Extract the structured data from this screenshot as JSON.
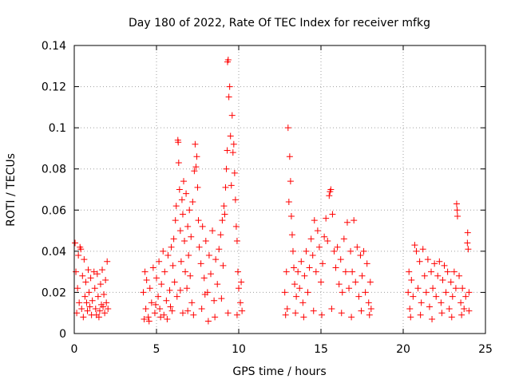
{
  "chart_data": {
    "type": "scatter",
    "title": "Day 180 of 2022, Rate Of TEC Index for receiver mfkg",
    "xlabel": "GPS time / hours",
    "ylabel": "ROTI / TECUs",
    "xlim": [
      0,
      25
    ],
    "ylim": [
      0,
      0.14
    ],
    "xticks": [
      0,
      5,
      10,
      15,
      20,
      25
    ],
    "xtick_labels": [
      "0",
      "5",
      "10",
      "15",
      "20",
      "25"
    ],
    "yticks": [
      0,
      0.02,
      0.04,
      0.06,
      0.08,
      0.1,
      0.12,
      0.14
    ],
    "ytick_labels": [
      "0",
      "0.02",
      "0.04",
      "0.06",
      "0.08",
      "0.1",
      "0.12",
      "0.14"
    ],
    "grid": true,
    "marker": "+",
    "color": "#ff0000",
    "series": [
      {
        "points": [
          [
            0.05,
            0.044
          ],
          [
            0.1,
            0.03
          ],
          [
            0.2,
            0.022
          ],
          [
            0.25,
            0.038
          ],
          [
            0.3,
            0.015
          ],
          [
            0.35,
            0.042
          ],
          [
            0.4,
            0.041
          ],
          [
            0.45,
            0.012
          ],
          [
            0.5,
            0.028
          ],
          [
            0.55,
            0.008
          ],
          [
            0.6,
            0.036
          ],
          [
            0.65,
            0.018
          ],
          [
            0.7,
            0.025
          ],
          [
            0.8,
            0.011
          ],
          [
            0.85,
            0.031
          ],
          [
            0.9,
            0.02
          ],
          [
            1.0,
            0.027
          ],
          [
            1.05,
            0.009
          ],
          [
            1.1,
            0.016
          ],
          [
            1.2,
            0.03
          ],
          [
            1.25,
            0.022
          ],
          [
            1.3,
            0.012
          ],
          [
            1.4,
            0.029
          ],
          [
            1.45,
            0.018
          ],
          [
            1.5,
            0.008
          ],
          [
            1.6,
            0.024
          ],
          [
            1.65,
            0.014
          ],
          [
            1.7,
            0.031
          ],
          [
            1.8,
            0.019
          ],
          [
            1.85,
            0.01
          ],
          [
            1.9,
            0.026
          ],
          [
            1.95,
            0.015
          ],
          [
            2.0,
            0.035
          ],
          [
            2.05,
            0.012
          ],
          [
            0.15,
            0.01
          ],
          [
            0.75,
            0.015
          ],
          [
            1.35,
            0.009
          ],
          [
            1.75,
            0.013
          ],
          [
            0.95,
            0.013
          ],
          [
            1.55,
            0.011
          ],
          [
            4.2,
            0.02
          ],
          [
            4.3,
            0.03
          ],
          [
            4.35,
            0.012
          ],
          [
            4.4,
            0.026
          ],
          [
            4.5,
            0.008
          ],
          [
            4.6,
            0.022
          ],
          [
            4.7,
            0.015
          ],
          [
            4.8,
            0.032
          ],
          [
            4.9,
            0.01
          ],
          [
            5.0,
            0.027
          ],
          [
            5.1,
            0.018
          ],
          [
            5.15,
            0.035
          ],
          [
            5.2,
            0.012
          ],
          [
            5.3,
            0.024
          ],
          [
            5.4,
            0.04
          ],
          [
            5.45,
            0.009
          ],
          [
            5.5,
            0.03
          ],
          [
            5.6,
            0.016
          ],
          [
            5.7,
            0.038
          ],
          [
            5.8,
            0.021
          ],
          [
            5.9,
            0.042
          ],
          [
            5.95,
            0.011
          ],
          [
            6.0,
            0.033
          ],
          [
            6.05,
            0.046
          ],
          [
            6.1,
            0.025
          ],
          [
            6.15,
            0.055
          ],
          [
            6.2,
            0.062
          ],
          [
            6.25,
            0.018
          ],
          [
            6.3,
            0.094
          ],
          [
            6.32,
            0.093
          ],
          [
            6.35,
            0.083
          ],
          [
            6.4,
            0.07
          ],
          [
            6.45,
            0.05
          ],
          [
            6.5,
            0.035
          ],
          [
            6.55,
            0.065
          ],
          [
            6.6,
            0.058
          ],
          [
            6.65,
            0.074
          ],
          [
            6.7,
            0.045
          ],
          [
            6.75,
            0.03
          ],
          [
            6.8,
            0.068
          ],
          [
            6.85,
            0.022
          ],
          [
            6.9,
            0.052
          ],
          [
            6.95,
            0.038
          ],
          [
            7.0,
            0.06
          ],
          [
            7.05,
            0.028
          ],
          [
            7.1,
            0.047
          ],
          [
            7.15,
            0.015
          ],
          [
            7.2,
            0.064
          ],
          [
            7.3,
            0.079
          ],
          [
            7.35,
            0.092
          ],
          [
            7.4,
            0.081
          ],
          [
            7.45,
            0.086
          ],
          [
            7.5,
            0.071
          ],
          [
            7.55,
            0.055
          ],
          [
            7.6,
            0.042
          ],
          [
            7.7,
            0.034
          ],
          [
            7.8,
            0.052
          ],
          [
            7.9,
            0.027
          ],
          [
            8.0,
            0.045
          ],
          [
            8.1,
            0.02
          ],
          [
            8.2,
            0.038
          ],
          [
            8.3,
            0.029
          ],
          [
            8.4,
            0.05
          ],
          [
            8.5,
            0.016
          ],
          [
            8.6,
            0.036
          ],
          [
            8.7,
            0.024
          ],
          [
            8.8,
            0.041
          ],
          [
            8.9,
            0.048
          ],
          [
            9.0,
            0.055
          ],
          [
            9.05,
            0.033
          ],
          [
            9.1,
            0.062
          ],
          [
            9.15,
            0.058
          ],
          [
            9.2,
            0.071
          ],
          [
            9.25,
            0.08
          ],
          [
            9.3,
            0.089
          ],
          [
            9.32,
            0.132
          ],
          [
            9.36,
            0.133
          ],
          [
            9.4,
            0.115
          ],
          [
            9.45,
            0.12
          ],
          [
            9.5,
            0.096
          ],
          [
            9.55,
            0.072
          ],
          [
            9.6,
            0.106
          ],
          [
            9.65,
            0.088
          ],
          [
            9.7,
            0.092
          ],
          [
            9.75,
            0.078
          ],
          [
            9.8,
            0.065
          ],
          [
            9.85,
            0.052
          ],
          [
            9.9,
            0.045
          ],
          [
            9.95,
            0.03
          ],
          [
            10.0,
            0.022
          ],
          [
            10.1,
            0.015
          ],
          [
            10.2,
            0.011
          ],
          [
            4.25,
            0.007
          ],
          [
            4.55,
            0.006
          ],
          [
            5.25,
            0.008
          ],
          [
            5.65,
            0.007
          ],
          [
            6.6,
            0.01
          ],
          [
            7.25,
            0.009
          ],
          [
            7.75,
            0.012
          ],
          [
            8.55,
            0.008
          ],
          [
            9.35,
            0.01
          ],
          [
            9.9,
            0.009
          ],
          [
            10.15,
            0.025
          ],
          [
            8.15,
            0.006
          ],
          [
            6.9,
            0.011
          ],
          [
            5.85,
            0.013
          ],
          [
            4.95,
            0.014
          ],
          [
            7.95,
            0.019
          ],
          [
            8.95,
            0.017
          ],
          [
            6.45,
            0.021
          ],
          [
            12.8,
            0.02
          ],
          [
            12.9,
            0.03
          ],
          [
            12.95,
            0.012
          ],
          [
            13.0,
            0.1
          ],
          [
            13.05,
            0.064
          ],
          [
            13.1,
            0.086
          ],
          [
            13.15,
            0.074
          ],
          [
            13.2,
            0.057
          ],
          [
            13.25,
            0.048
          ],
          [
            13.3,
            0.04
          ],
          [
            13.35,
            0.032
          ],
          [
            13.4,
            0.024
          ],
          [
            13.5,
            0.018
          ],
          [
            13.6,
            0.03
          ],
          [
            13.7,
            0.022
          ],
          [
            13.8,
            0.035
          ],
          [
            13.9,
            0.015
          ],
          [
            14.0,
            0.028
          ],
          [
            14.1,
            0.04
          ],
          [
            14.2,
            0.02
          ],
          [
            14.3,
            0.032
          ],
          [
            14.4,
            0.046
          ],
          [
            14.5,
            0.038
          ],
          [
            14.6,
            0.055
          ],
          [
            14.7,
            0.03
          ],
          [
            14.8,
            0.05
          ],
          [
            14.9,
            0.042
          ],
          [
            15.0,
            0.025
          ],
          [
            15.1,
            0.034
          ],
          [
            15.2,
            0.047
          ],
          [
            15.3,
            0.056
          ],
          [
            15.4,
            0.045
          ],
          [
            15.5,
            0.067
          ],
          [
            15.55,
            0.069
          ],
          [
            15.6,
            0.07
          ],
          [
            15.7,
            0.058
          ],
          [
            15.8,
            0.04
          ],
          [
            15.9,
            0.032
          ],
          [
            16.0,
            0.042
          ],
          [
            16.1,
            0.024
          ],
          [
            16.2,
            0.036
          ],
          [
            16.3,
            0.02
          ],
          [
            16.4,
            0.046
          ],
          [
            16.5,
            0.03
          ],
          [
            16.6,
            0.054
          ],
          [
            16.7,
            0.022
          ],
          [
            16.8,
            0.04
          ],
          [
            16.9,
            0.03
          ],
          [
            17.0,
            0.055
          ],
          [
            17.1,
            0.025
          ],
          [
            17.2,
            0.042
          ],
          [
            17.3,
            0.018
          ],
          [
            17.4,
            0.038
          ],
          [
            17.5,
            0.028
          ],
          [
            17.6,
            0.04
          ],
          [
            17.7,
            0.02
          ],
          [
            17.8,
            0.034
          ],
          [
            17.9,
            0.015
          ],
          [
            18.0,
            0.025
          ],
          [
            18.05,
            0.012
          ],
          [
            12.85,
            0.009
          ],
          [
            13.45,
            0.01
          ],
          [
            13.95,
            0.008
          ],
          [
            14.55,
            0.011
          ],
          [
            15.05,
            0.009
          ],
          [
            15.65,
            0.012
          ],
          [
            16.25,
            0.01
          ],
          [
            16.85,
            0.008
          ],
          [
            17.45,
            0.011
          ],
          [
            17.95,
            0.009
          ],
          [
            20.3,
            0.02
          ],
          [
            20.35,
            0.03
          ],
          [
            20.4,
            0.012
          ],
          [
            20.5,
            0.026
          ],
          [
            20.6,
            0.018
          ],
          [
            20.7,
            0.043
          ],
          [
            20.8,
            0.04
          ],
          [
            20.9,
            0.022
          ],
          [
            21.0,
            0.035
          ],
          [
            21.1,
            0.015
          ],
          [
            21.2,
            0.041
          ],
          [
            21.3,
            0.028
          ],
          [
            21.4,
            0.02
          ],
          [
            21.5,
            0.036
          ],
          [
            21.6,
            0.013
          ],
          [
            21.7,
            0.03
          ],
          [
            21.8,
            0.022
          ],
          [
            21.9,
            0.034
          ],
          [
            22.0,
            0.018
          ],
          [
            22.1,
            0.028
          ],
          [
            22.2,
            0.035
          ],
          [
            22.3,
            0.015
          ],
          [
            22.4,
            0.026
          ],
          [
            22.5,
            0.033
          ],
          [
            22.6,
            0.02
          ],
          [
            22.7,
            0.03
          ],
          [
            22.8,
            0.012
          ],
          [
            22.9,
            0.025
          ],
          [
            23.0,
            0.018
          ],
          [
            23.1,
            0.03
          ],
          [
            23.2,
            0.022
          ],
          [
            23.25,
            0.063
          ],
          [
            23.28,
            0.06
          ],
          [
            23.3,
            0.057
          ],
          [
            23.4,
            0.028
          ],
          [
            23.5,
            0.015
          ],
          [
            23.6,
            0.022
          ],
          [
            23.7,
            0.012
          ],
          [
            23.8,
            0.018
          ],
          [
            23.9,
            0.044
          ],
          [
            23.92,
            0.049
          ],
          [
            23.95,
            0.041
          ],
          [
            24.0,
            0.02
          ],
          [
            20.45,
            0.008
          ],
          [
            21.05,
            0.009
          ],
          [
            21.75,
            0.007
          ],
          [
            22.35,
            0.01
          ],
          [
            22.95,
            0.008
          ],
          [
            23.55,
            0.009
          ],
          [
            24.0,
            0.011
          ]
        ]
      }
    ]
  }
}
